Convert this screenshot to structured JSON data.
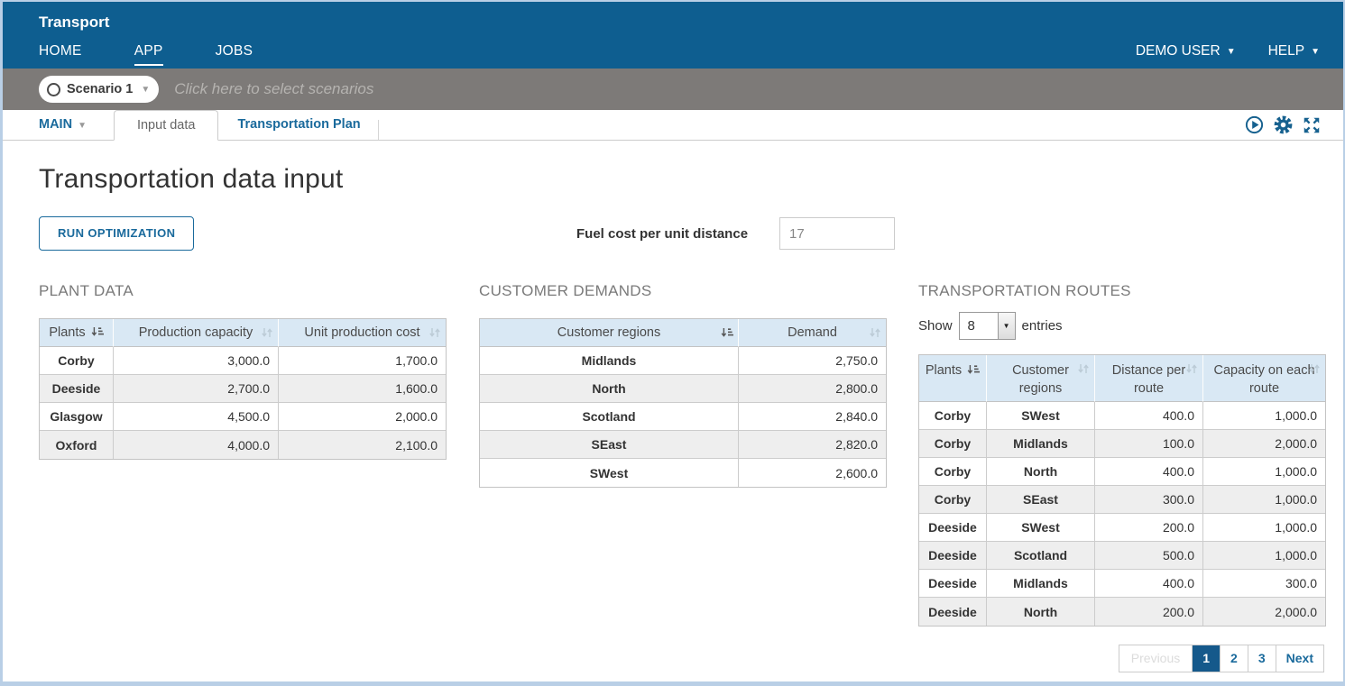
{
  "header": {
    "app_title": "Transport",
    "nav_items": [
      {
        "label": "HOME",
        "active": false
      },
      {
        "label": "APP",
        "active": true
      },
      {
        "label": "JOBS",
        "active": false
      }
    ],
    "user_menu": "DEMO USER",
    "help_menu": "HELP"
  },
  "scenario_bar": {
    "scenario_name": "Scenario 1",
    "placeholder": "Click here to select scenarios"
  },
  "view_bar": {
    "main_menu": "MAIN",
    "tabs": [
      {
        "label": "Input data",
        "active": true
      },
      {
        "label": "Transportation Plan",
        "active": false
      }
    ],
    "icons": [
      "run-model-icon",
      "settings-gear-icon",
      "fullscreen-expand-icon"
    ]
  },
  "main": {
    "page_title": "Transportation data input",
    "run_button": "RUN OPTIMIZATION",
    "fuel_cost": {
      "label": "Fuel cost per unit distance",
      "value": "17"
    }
  },
  "plant_data": {
    "title": "PLANT DATA",
    "columns": [
      "Plants",
      "Production capacity",
      "Unit production cost"
    ],
    "sorted_column": "Plants",
    "rows": [
      [
        "Corby",
        "3,000.0",
        "1,700.0"
      ],
      [
        "Deeside",
        "2,700.0",
        "1,600.0"
      ],
      [
        "Glasgow",
        "4,500.0",
        "2,000.0"
      ],
      [
        "Oxford",
        "4,000.0",
        "2,100.0"
      ]
    ]
  },
  "customer_demands": {
    "title": "CUSTOMER DEMANDS",
    "columns": [
      "Customer regions",
      "Demand"
    ],
    "sorted_column": "Customer regions",
    "rows": [
      [
        "Midlands",
        "2,750.0"
      ],
      [
        "North",
        "2,800.0"
      ],
      [
        "Scotland",
        "2,840.0"
      ],
      [
        "SEast",
        "2,820.0"
      ],
      [
        "SWest",
        "2,600.0"
      ]
    ]
  },
  "routes": {
    "title": "TRANSPORTATION ROUTES",
    "show_label": "Show",
    "page_size": "8",
    "entries_label": "entries",
    "columns": [
      "Plants",
      "Customer regions",
      "Distance per route",
      "Capacity on each route"
    ],
    "sorted_column": "Plants",
    "rows": [
      [
        "Corby",
        "SWest",
        "400.0",
        "1,000.0"
      ],
      [
        "Corby",
        "Midlands",
        "100.0",
        "2,000.0"
      ],
      [
        "Corby",
        "North",
        "400.0",
        "1,000.0"
      ],
      [
        "Corby",
        "SEast",
        "300.0",
        "1,000.0"
      ],
      [
        "Deeside",
        "SWest",
        "200.0",
        "1,000.0"
      ],
      [
        "Deeside",
        "Scotland",
        "500.0",
        "1,000.0"
      ],
      [
        "Deeside",
        "Midlands",
        "400.0",
        "300.0"
      ],
      [
        "Deeside",
        "North",
        "200.0",
        "2,000.0"
      ]
    ],
    "pagination": {
      "previous": "Previous",
      "pages": [
        "1",
        "2",
        "3"
      ],
      "active_page": "1",
      "next": "Next"
    }
  },
  "colors": {
    "navbar": "#0e5e90",
    "accent": "#16618f",
    "link": "#1a6a9c",
    "scenario_bar": "#7d7a78",
    "table_header_bg": "#d9e8f4",
    "row_stripe": "#eeeeee",
    "active_page_bg": "#15598b",
    "page_border": "#b9cfe6"
  }
}
